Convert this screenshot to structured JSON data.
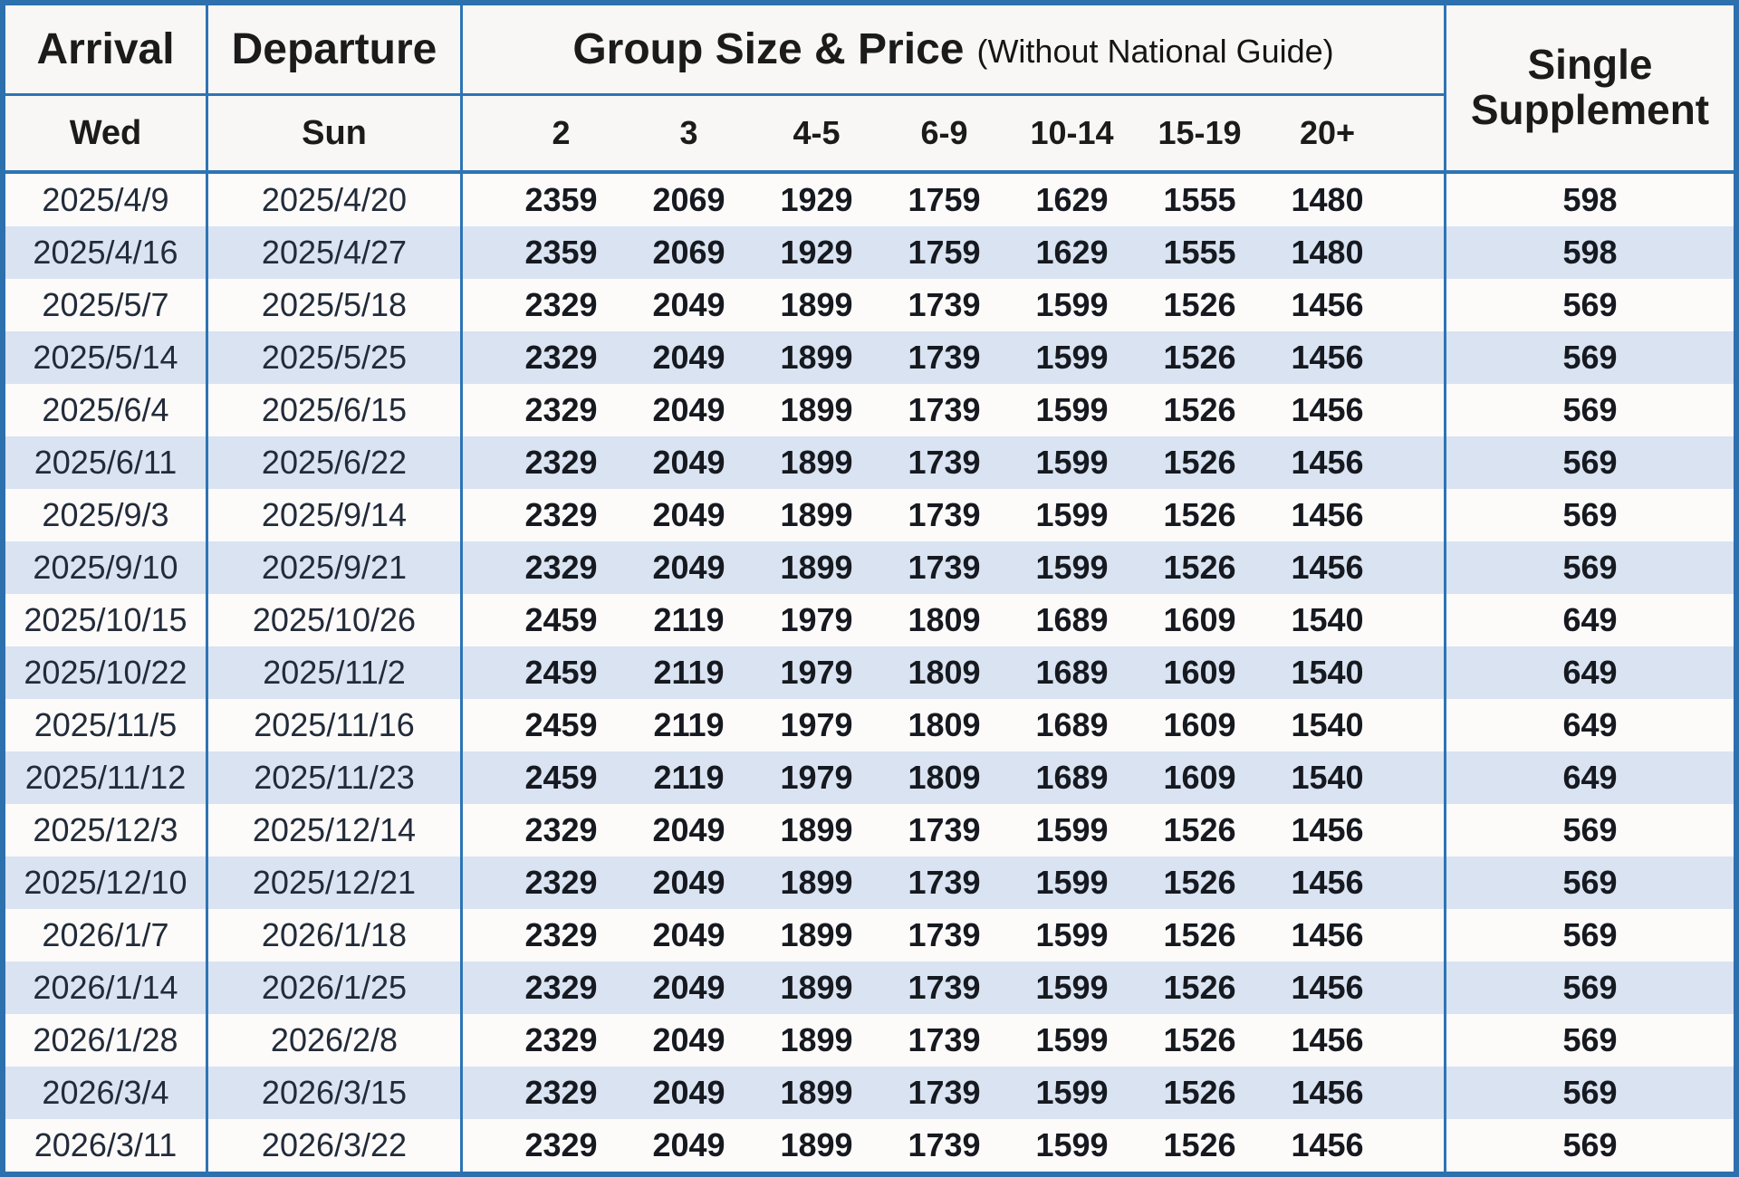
{
  "table": {
    "header": {
      "arrival": "Arrival",
      "arrival_day": "Wed",
      "departure": "Departure",
      "departure_day": "Sun",
      "group_title": "Group Size & Price",
      "group_note": "(Without National Guide)",
      "group_sizes": [
        "2",
        "3",
        "4-5",
        "6-9",
        "10-14",
        "15-19",
        "20+"
      ],
      "single_supplement_line1": "Single",
      "single_supplement_line2": "Supplement"
    },
    "colors": {
      "border_blue": "#2e74b5",
      "stripe_blue": "#d9e3f1",
      "row_white": "#fcfbfa",
      "header_bg": "#f8f7f5",
      "text_dark": "#1b1b1b"
    },
    "rows": [
      {
        "arrival": "2025/4/9",
        "departure": "2025/4/20",
        "prices": [
          2359,
          2069,
          1929,
          1759,
          1629,
          1555,
          1480
        ],
        "single_supplement": 598
      },
      {
        "arrival": "2025/4/16",
        "departure": "2025/4/27",
        "prices": [
          2359,
          2069,
          1929,
          1759,
          1629,
          1555,
          1480
        ],
        "single_supplement": 598
      },
      {
        "arrival": "2025/5/7",
        "departure": "2025/5/18",
        "prices": [
          2329,
          2049,
          1899,
          1739,
          1599,
          1526,
          1456
        ],
        "single_supplement": 569
      },
      {
        "arrival": "2025/5/14",
        "departure": "2025/5/25",
        "prices": [
          2329,
          2049,
          1899,
          1739,
          1599,
          1526,
          1456
        ],
        "single_supplement": 569
      },
      {
        "arrival": "2025/6/4",
        "departure": "2025/6/15",
        "prices": [
          2329,
          2049,
          1899,
          1739,
          1599,
          1526,
          1456
        ],
        "single_supplement": 569
      },
      {
        "arrival": "2025/6/11",
        "departure": "2025/6/22",
        "prices": [
          2329,
          2049,
          1899,
          1739,
          1599,
          1526,
          1456
        ],
        "single_supplement": 569
      },
      {
        "arrival": "2025/9/3",
        "departure": "2025/9/14",
        "prices": [
          2329,
          2049,
          1899,
          1739,
          1599,
          1526,
          1456
        ],
        "single_supplement": 569
      },
      {
        "arrival": "2025/9/10",
        "departure": "2025/9/21",
        "prices": [
          2329,
          2049,
          1899,
          1739,
          1599,
          1526,
          1456
        ],
        "single_supplement": 569
      },
      {
        "arrival": "2025/10/15",
        "departure": "2025/10/26",
        "prices": [
          2459,
          2119,
          1979,
          1809,
          1689,
          1609,
          1540
        ],
        "single_supplement": 649
      },
      {
        "arrival": "2025/10/22",
        "departure": "2025/11/2",
        "prices": [
          2459,
          2119,
          1979,
          1809,
          1689,
          1609,
          1540
        ],
        "single_supplement": 649
      },
      {
        "arrival": "2025/11/5",
        "departure": "2025/11/16",
        "prices": [
          2459,
          2119,
          1979,
          1809,
          1689,
          1609,
          1540
        ],
        "single_supplement": 649
      },
      {
        "arrival": "2025/11/12",
        "departure": "2025/11/23",
        "prices": [
          2459,
          2119,
          1979,
          1809,
          1689,
          1609,
          1540
        ],
        "single_supplement": 649
      },
      {
        "arrival": "2025/12/3",
        "departure": "2025/12/14",
        "prices": [
          2329,
          2049,
          1899,
          1739,
          1599,
          1526,
          1456
        ],
        "single_supplement": 569
      },
      {
        "arrival": "2025/12/10",
        "departure": "2025/12/21",
        "prices": [
          2329,
          2049,
          1899,
          1739,
          1599,
          1526,
          1456
        ],
        "single_supplement": 569
      },
      {
        "arrival": "2026/1/7",
        "departure": "2026/1/18",
        "prices": [
          2329,
          2049,
          1899,
          1739,
          1599,
          1526,
          1456
        ],
        "single_supplement": 569
      },
      {
        "arrival": "2026/1/14",
        "departure": "2026/1/25",
        "prices": [
          2329,
          2049,
          1899,
          1739,
          1599,
          1526,
          1456
        ],
        "single_supplement": 569
      },
      {
        "arrival": "2026/1/28",
        "departure": "2026/2/8",
        "prices": [
          2329,
          2049,
          1899,
          1739,
          1599,
          1526,
          1456
        ],
        "single_supplement": 569
      },
      {
        "arrival": "2026/3/4",
        "departure": "2026/3/15",
        "prices": [
          2329,
          2049,
          1899,
          1739,
          1599,
          1526,
          1456
        ],
        "single_supplement": 569
      },
      {
        "arrival": "2026/3/11",
        "departure": "2026/3/22",
        "prices": [
          2329,
          2049,
          1899,
          1739,
          1599,
          1526,
          1456
        ],
        "single_supplement": 569
      }
    ]
  }
}
